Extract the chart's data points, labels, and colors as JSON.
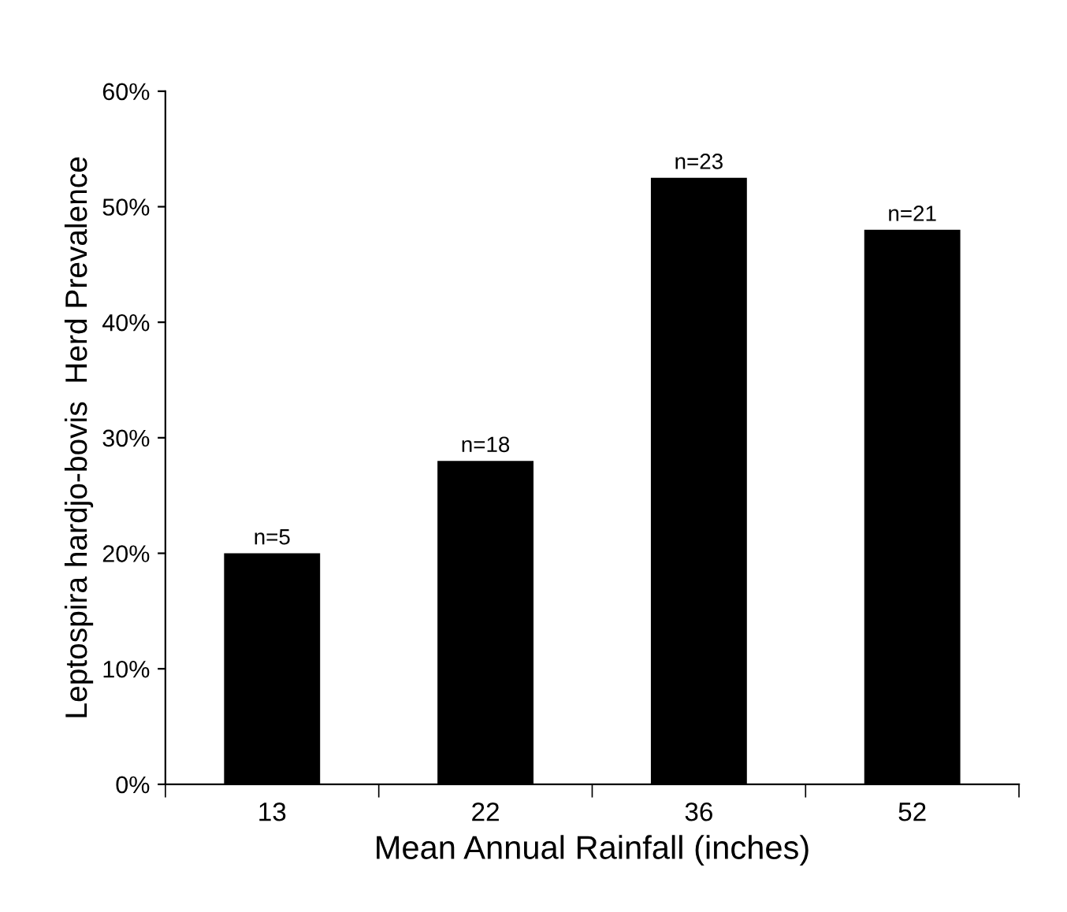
{
  "chart_data": {
    "type": "bar",
    "xlabel": "Mean Annual Rainfall (inches)",
    "ylabel": "Leptospira hardjo-bovis  Herd Prevalence",
    "categories": [
      "13",
      "22",
      "36",
      "52"
    ],
    "values": [
      20,
      28,
      52.5,
      48
    ],
    "color": "#000000",
    "annotations": [
      {
        "text": "n=5",
        "x": "13",
        "y": 20
      },
      {
        "text": "n=18",
        "x": "22",
        "y": 28
      },
      {
        "text": "n=23",
        "x": "36",
        "y": 52.5
      },
      {
        "text": "n=21",
        "x": "52",
        "y": 48
      }
    ],
    "ylim": [
      0,
      60
    ],
    "yticks": [
      {
        "value": 0,
        "label": "0%"
      },
      {
        "value": 10,
        "label": "10%"
      },
      {
        "value": 20,
        "label": "20%"
      },
      {
        "value": 30,
        "label": "30%"
      },
      {
        "value": 40,
        "label": "40%"
      },
      {
        "value": 50,
        "label": "50%"
      },
      {
        "value": 60,
        "label": "60%"
      }
    ],
    "grid": false
  }
}
